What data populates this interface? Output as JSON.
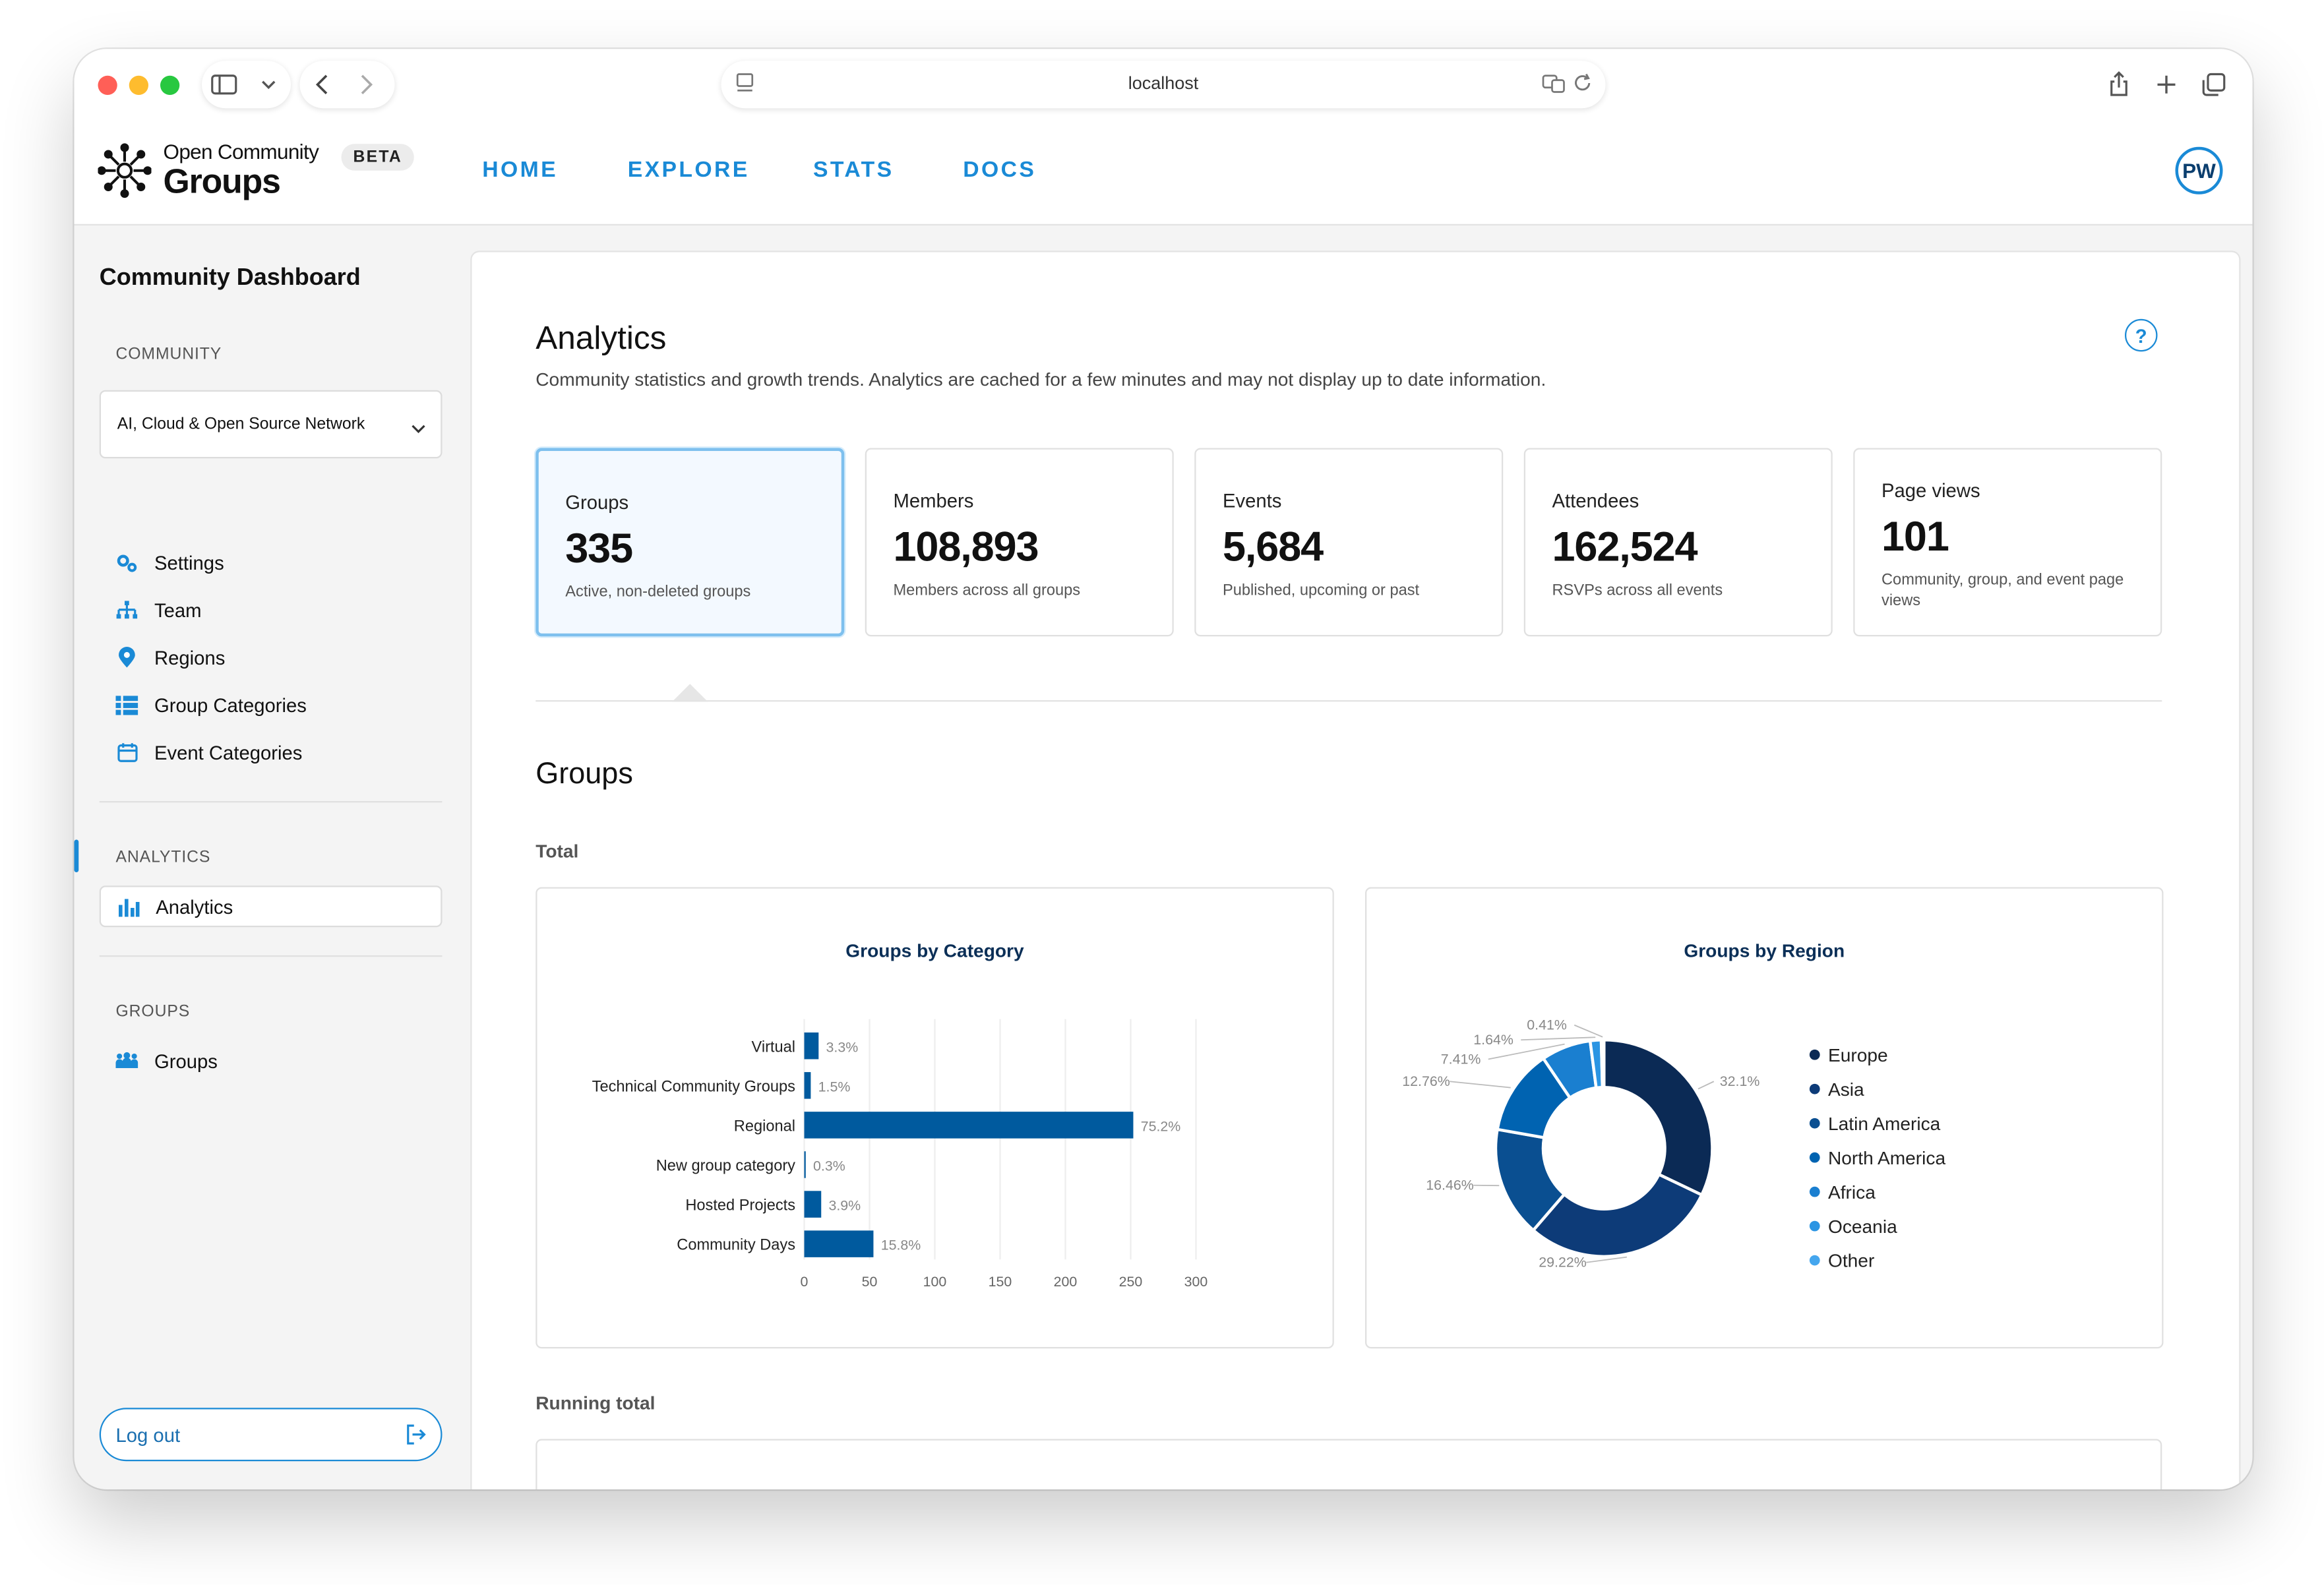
{
  "browser": {
    "url": "localhost"
  },
  "header": {
    "logo_small": "Open Community",
    "logo_big": "Groups",
    "badge": "BETA",
    "nav": [
      "HOME",
      "EXPLORE",
      "STATS",
      "DOCS"
    ],
    "avatar_initials": "PW"
  },
  "sidebar": {
    "title": "Community Dashboard",
    "community_section": "COMMUNITY",
    "community_selected": "AI, Cloud & Open Source Network",
    "community_items": [
      {
        "label": "Settings",
        "icon": "gear-icon"
      },
      {
        "label": "Team",
        "icon": "team-icon"
      },
      {
        "label": "Regions",
        "icon": "location-pin-icon"
      },
      {
        "label": "Group Categories",
        "icon": "list-icon"
      },
      {
        "label": "Event Categories",
        "icon": "calendar-icon"
      }
    ],
    "analytics_section": "ANALYTICS",
    "analytics_item": {
      "label": "Analytics",
      "icon": "bar-chart-icon"
    },
    "groups_section": "GROUPS",
    "groups_item": {
      "label": "Groups",
      "icon": "people-icon"
    },
    "logout_label": "Log out"
  },
  "main": {
    "title": "Analytics",
    "subtitle": "Community statistics and growth trends. Analytics are cached for a few minutes and may not display up to date information.",
    "help_label": "?",
    "stats": [
      {
        "label": "Groups",
        "value": "335",
        "desc": "Active, non-deleted groups"
      },
      {
        "label": "Members",
        "value": "108,893",
        "desc": "Members across all groups"
      },
      {
        "label": "Events",
        "value": "5,684",
        "desc": "Published, upcoming or past"
      },
      {
        "label": "Attendees",
        "value": "162,524",
        "desc": "RSVPs across all events"
      },
      {
        "label": "Page views",
        "value": "101",
        "desc": "Community, group, and event page views"
      }
    ],
    "section_title": "Groups",
    "total_label": "Total",
    "running_total_label": "Running total"
  },
  "colors": {
    "accent": "#1a8ad6",
    "bar": "#005a9e",
    "donut": [
      "#0b2a55",
      "#0d3b78",
      "#0a4f91",
      "#0063b1",
      "#1a7fd0",
      "#2b95e3",
      "#45a6ee"
    ]
  },
  "chart_data": [
    {
      "type": "bar",
      "orientation": "horizontal",
      "title": "Groups by Category",
      "categories": [
        "Virtual",
        "Technical Community Groups",
        "Regional",
        "New group category",
        "Hosted Projects",
        "Community Days"
      ],
      "values": [
        11,
        5,
        252,
        1,
        13,
        53
      ],
      "percent_labels": [
        "3.3%",
        "1.5%",
        "75.2%",
        "0.3%",
        "3.9%",
        "15.8%"
      ],
      "xlim": [
        0,
        300
      ],
      "xticks": [
        0,
        50,
        100,
        150,
        200,
        250,
        300
      ],
      "grid": true
    },
    {
      "type": "pie",
      "variant": "donut",
      "title": "Groups by Region",
      "categories": [
        "Europe",
        "Asia",
        "Latin America",
        "North America",
        "Africa",
        "Oceania",
        "Other"
      ],
      "values": [
        32.1,
        29.22,
        16.46,
        12.76,
        7.41,
        1.64,
        0.41
      ],
      "percent_labels": [
        "32.1%",
        "29.22%",
        "16.46%",
        "12.76%",
        "7.41%",
        "1.64%",
        "0.41%"
      ],
      "legend_position": "right"
    }
  ]
}
